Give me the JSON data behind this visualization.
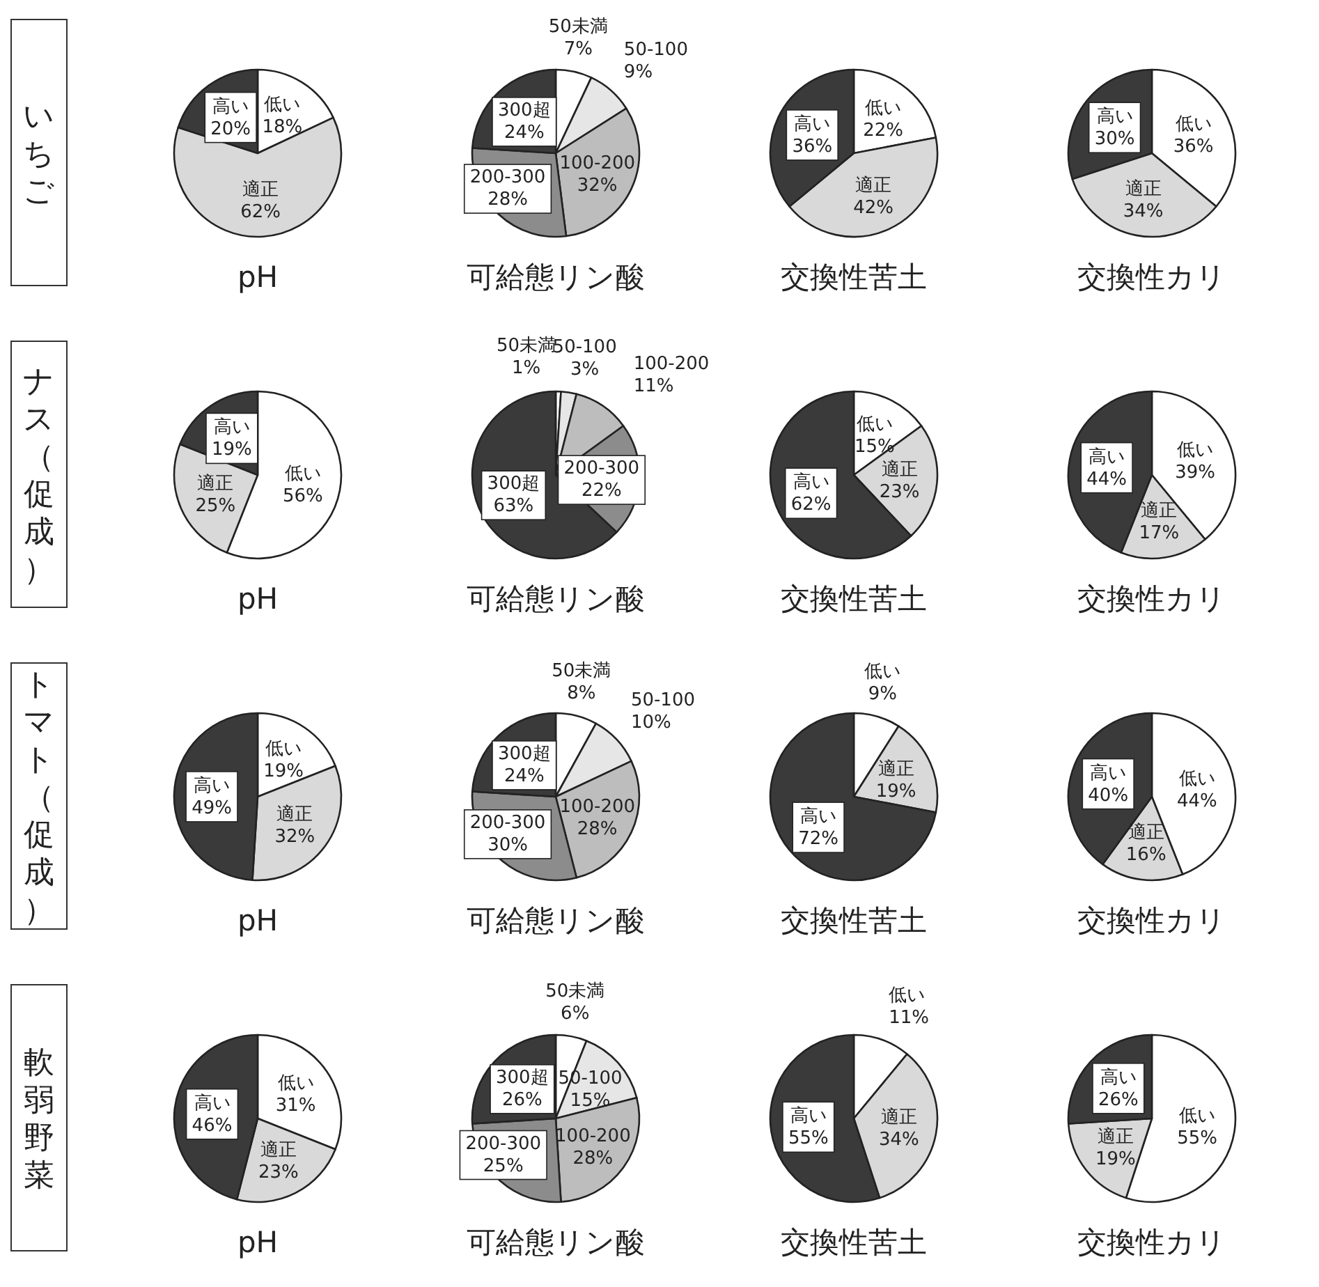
{
  "chart_data": [
    {
      "type": "pie",
      "subtitle": "いちご",
      "title": "pH",
      "categories": [
        "低い",
        "適正",
        "高い"
      ],
      "values": [
        18,
        62,
        20
      ],
      "value_labels": [
        "18%",
        "62%",
        "20%"
      ],
      "colors": [
        "#ffffff",
        "#d9d9d9",
        "#3a3a3a"
      ]
    },
    {
      "type": "pie",
      "title": "可給態リン酸",
      "categories": [
        "50未満",
        "50-100",
        "100-200",
        "200-300",
        "300超"
      ],
      "values": [
        7,
        9,
        32,
        28,
        24
      ],
      "value_labels": [
        "7%",
        "9%",
        "32%",
        "28%",
        "24%"
      ],
      "colors": [
        "#ffffff",
        "#e6e6e6",
        "#bdbdbd",
        "#8c8c8c",
        "#3a3a3a"
      ]
    },
    {
      "type": "pie",
      "title": "交換性苦土",
      "categories": [
        "低い",
        "適正",
        "高い"
      ],
      "values": [
        22,
        42,
        36
      ],
      "value_labels": [
        "22%",
        "42%",
        "36%"
      ],
      "colors": [
        "#ffffff",
        "#d9d9d9",
        "#3a3a3a"
      ]
    },
    {
      "type": "pie",
      "title": "交換性カリ",
      "categories": [
        "低い",
        "適正",
        "高い"
      ],
      "values": [
        36,
        34,
        30
      ],
      "value_labels": [
        "36%",
        "34%",
        "30%"
      ],
      "colors": [
        "#ffffff",
        "#d9d9d9",
        "#3a3a3a"
      ]
    },
    {
      "type": "pie",
      "subtitle": "ナス（促成）",
      "title": "pH",
      "categories": [
        "低い",
        "適正",
        "高い"
      ],
      "values": [
        56,
        25,
        19
      ],
      "value_labels": [
        "56%",
        "25%",
        "19%"
      ],
      "colors": [
        "#ffffff",
        "#d9d9d9",
        "#3a3a3a"
      ]
    },
    {
      "type": "pie",
      "title": "可給態リン酸",
      "categories": [
        "50未満",
        "50-100",
        "100-200",
        "200-300",
        "300超"
      ],
      "values": [
        1,
        3,
        11,
        22,
        63
      ],
      "value_labels": [
        "1%",
        "3%",
        "11%",
        "22%",
        "63%"
      ],
      "colors": [
        "#ffffff",
        "#e6e6e6",
        "#bdbdbd",
        "#8c8c8c",
        "#3a3a3a"
      ]
    },
    {
      "type": "pie",
      "title": "交換性苦土",
      "categories": [
        "低い",
        "適正",
        "高い"
      ],
      "values": [
        15,
        23,
        62
      ],
      "value_labels": [
        "15%",
        "23%",
        "62%"
      ],
      "colors": [
        "#ffffff",
        "#d9d9d9",
        "#3a3a3a"
      ]
    },
    {
      "type": "pie",
      "title": "交換性カリ",
      "categories": [
        "低い",
        "適正",
        "高い"
      ],
      "values": [
        39,
        17,
        44
      ],
      "value_labels": [
        "39%",
        "17%",
        "44%"
      ],
      "colors": [
        "#ffffff",
        "#d9d9d9",
        "#3a3a3a"
      ]
    },
    {
      "type": "pie",
      "subtitle": "トマト（促成）",
      "title": "pH",
      "categories": [
        "低い",
        "適正",
        "高い"
      ],
      "values": [
        19,
        32,
        49
      ],
      "value_labels": [
        "19%",
        "32%",
        "49%"
      ],
      "colors": [
        "#ffffff",
        "#d9d9d9",
        "#3a3a3a"
      ]
    },
    {
      "type": "pie",
      "title": "可給態リン酸",
      "categories": [
        "50未満",
        "50-100",
        "100-200",
        "200-300",
        "300超"
      ],
      "values": [
        8,
        10,
        28,
        30,
        24
      ],
      "value_labels": [
        "8%",
        "10%",
        "28%",
        "30%",
        "24%"
      ],
      "colors": [
        "#ffffff",
        "#e6e6e6",
        "#bdbdbd",
        "#8c8c8c",
        "#3a3a3a"
      ]
    },
    {
      "type": "pie",
      "title": "交換性苦土",
      "categories": [
        "低い",
        "適正",
        "高い"
      ],
      "values": [
        9,
        19,
        72
      ],
      "value_labels": [
        "9%",
        "19%",
        "72%"
      ],
      "colors": [
        "#ffffff",
        "#d9d9d9",
        "#3a3a3a"
      ]
    },
    {
      "type": "pie",
      "title": "交換性カリ",
      "categories": [
        "低い",
        "適正",
        "高い"
      ],
      "values": [
        44,
        16,
        40
      ],
      "value_labels": [
        "44%",
        "16%",
        "40%"
      ],
      "colors": [
        "#ffffff",
        "#d9d9d9",
        "#3a3a3a"
      ]
    },
    {
      "type": "pie",
      "subtitle": "軟弱野菜",
      "title": "pH",
      "categories": [
        "低い",
        "適正",
        "高い"
      ],
      "values": [
        31,
        23,
        46
      ],
      "value_labels": [
        "31%",
        "23%",
        "46%"
      ],
      "colors": [
        "#ffffff",
        "#d9d9d9",
        "#3a3a3a"
      ]
    },
    {
      "type": "pie",
      "title": "可給態リン酸",
      "categories": [
        "50未満",
        "50-100",
        "100-200",
        "200-300",
        "300超"
      ],
      "values": [
        6,
        15,
        28,
        25,
        26
      ],
      "value_labels": [
        "6%",
        "15%",
        "28%",
        "25%",
        "26%"
      ],
      "colors": [
        "#ffffff",
        "#e6e6e6",
        "#bdbdbd",
        "#8c8c8c",
        "#3a3a3a"
      ]
    },
    {
      "type": "pie",
      "title": "交換性苦土",
      "categories": [
        "低い",
        "適正",
        "高い"
      ],
      "values": [
        11,
        34,
        55
      ],
      "value_labels": [
        "11%",
        "34%",
        "55%"
      ],
      "colors": [
        "#ffffff",
        "#d9d9d9",
        "#3a3a3a"
      ]
    },
    {
      "type": "pie",
      "title": "交換性カリ",
      "categories": [
        "低い",
        "適正",
        "高い"
      ],
      "values": [
        55,
        19,
        26
      ],
      "value_labels": [
        "55%",
        "19%",
        "26%"
      ],
      "colors": [
        "#ffffff",
        "#d9d9d9",
        "#3a3a3a"
      ]
    }
  ]
}
